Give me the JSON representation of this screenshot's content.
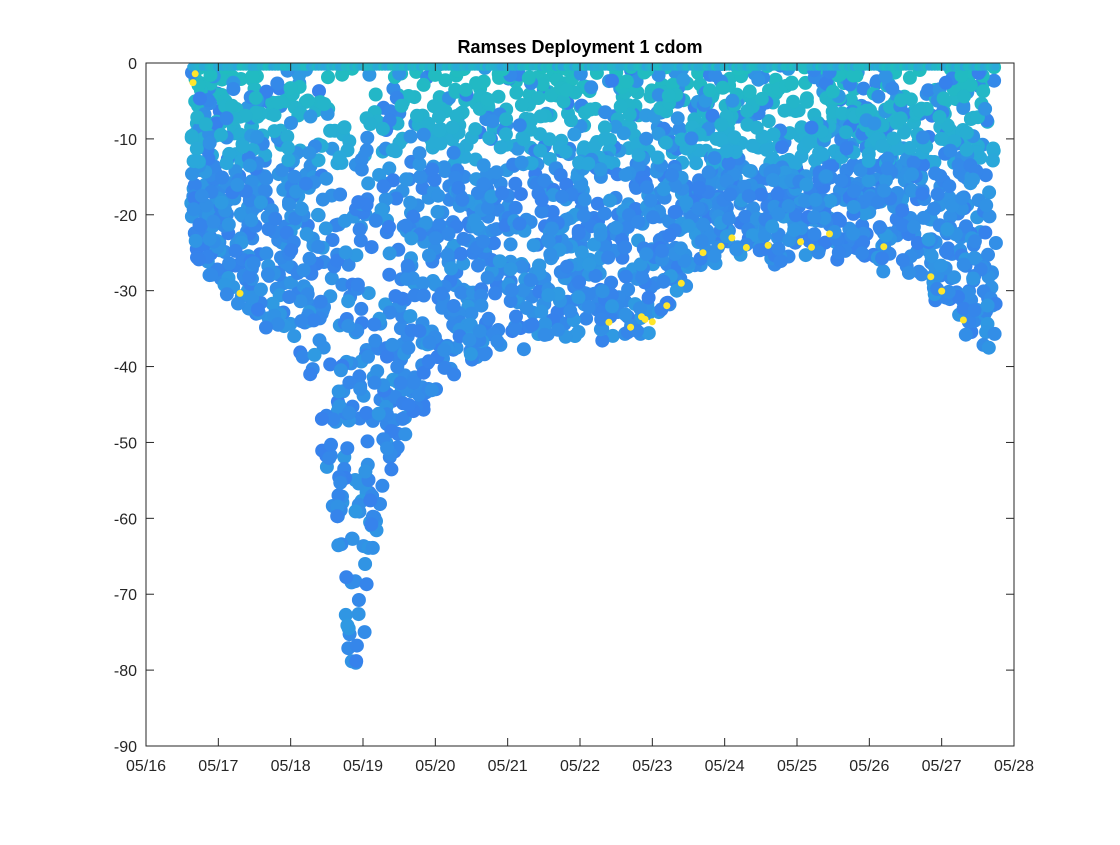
{
  "chart_data": {
    "type": "scatter",
    "title": "Ramses Deployment 1 cdom",
    "xlabel": "",
    "ylabel": "",
    "x_axis": {
      "kind": "date",
      "min": "05/16",
      "max": "05/28",
      "ticks": [
        "05/16",
        "05/17",
        "05/18",
        "05/19",
        "05/20",
        "05/21",
        "05/22",
        "05/23",
        "05/24",
        "05/25",
        "05/26",
        "05/27",
        "05/28"
      ]
    },
    "y_axis": {
      "min": -90,
      "max": 0,
      "ticks": [
        0,
        -10,
        -20,
        -30,
        -40,
        -50,
        -60,
        -70,
        -80,
        -90
      ],
      "tick_labels": [
        "0",
        "-10",
        "-20",
        "-30",
        "-40",
        "-50",
        "-60",
        "-70",
        "-80",
        "-90"
      ]
    },
    "grid": false,
    "legend": "none",
    "colormap": "parula",
    "colors": {
      "low": "#3d6cf5",
      "mid": "#2ba6dd",
      "high": "#ffe62b"
    },
    "depth_envelope": {
      "x": [
        "05/16 15:00",
        "05/17 00:00",
        "05/17 12:00",
        "05/18 00:00",
        "05/18 06:00",
        "05/18 12:00",
        "05/18 16:00",
        "05/18 20:00",
        "05/19 00:00",
        "05/19 06:00",
        "05/19 12:00",
        "05/20 00:00",
        "05/20 12:00",
        "05/21 00:00",
        "05/21 12:00",
        "05/22 00:00",
        "05/22 12:00",
        "05/23 00:00",
        "05/23 12:00",
        "05/24 00:00",
        "05/24 12:00",
        "05/25 00:00",
        "05/25 12:00",
        "05/26 00:00",
        "05/26 12:00",
        "05/27 00:00",
        "05/27 12:00",
        "05/27 18:00"
      ],
      "y": [
        -24,
        -30,
        -34,
        -37,
        -43,
        -53,
        -68,
        -83,
        -78,
        -62,
        -50,
        -44,
        -40,
        -38,
        -36,
        -36,
        -37,
        -36,
        -29,
        -26,
        -26,
        -26,
        -25,
        -26,
        -28,
        -32,
        -37,
        -40
      ]
    }
  }
}
